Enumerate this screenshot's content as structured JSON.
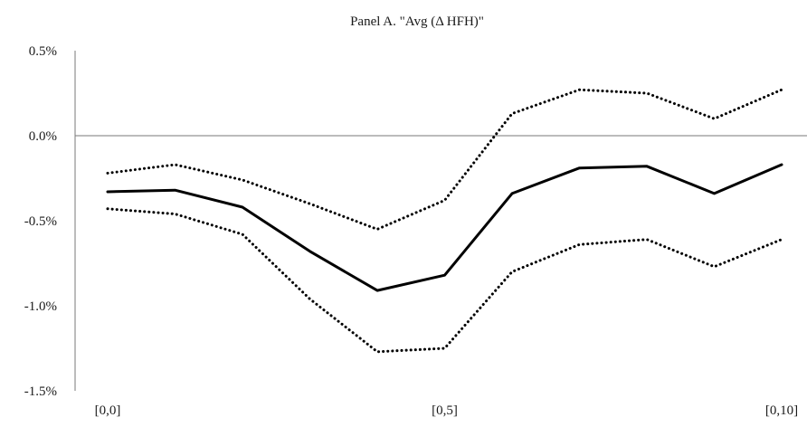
{
  "chart_data": {
    "type": "line",
    "title": "Panel A. \"Avg  (Δ HFH)\"",
    "xlabel": "",
    "ylabel": "",
    "x": [
      0,
      1,
      2,
      3,
      4,
      5,
      6,
      7,
      8,
      9,
      10
    ],
    "x_tick_labels": [
      {
        "x": 0,
        "label": "[0,0]"
      },
      {
        "x": 5,
        "label": "[0,5]"
      },
      {
        "x": 10,
        "label": "[0,10]"
      }
    ],
    "ylim": [
      -1.5,
      0.5
    ],
    "y_ticks": [
      0.5,
      0.0,
      -0.5,
      -1.0,
      -1.5
    ],
    "y_tick_labels": [
      "0.5%",
      "0.0%",
      "-0.5%",
      "-1.0%",
      "-1.5%"
    ],
    "zero_line": true,
    "grid": false,
    "series": [
      {
        "values": [
          -0.22,
          -0.17,
          -0.26,
          -0.4,
          -0.55,
          -0.38,
          0.13,
          0.27,
          0.25,
          0.1,
          0.27
        ],
        "style": "dotted",
        "color": "#000000"
      },
      {
        "values": [
          -0.33,
          -0.32,
          -0.42,
          -0.68,
          -0.91,
          -0.82,
          -0.34,
          -0.19,
          -0.18,
          -0.34,
          -0.17
        ],
        "style": "solid",
        "color": "#000000"
      },
      {
        "values": [
          -0.43,
          -0.46,
          -0.58,
          -0.96,
          -1.27,
          -1.25,
          -0.8,
          -0.64,
          -0.61,
          -0.77,
          -0.61
        ],
        "style": "dotted",
        "color": "#000000"
      }
    ]
  }
}
